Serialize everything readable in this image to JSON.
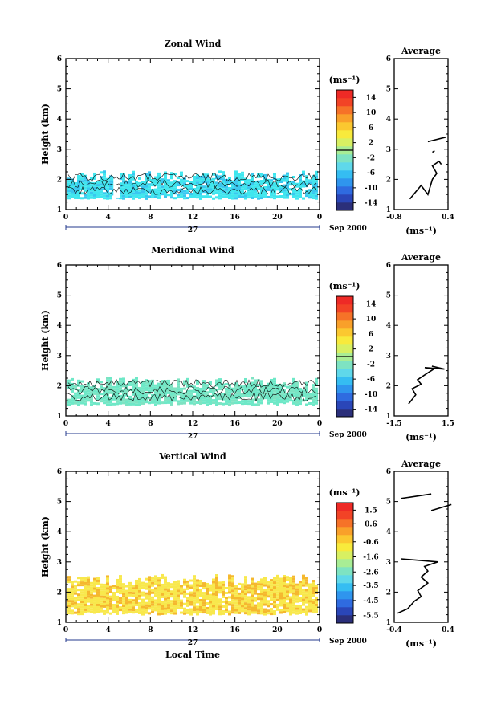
{
  "colors": {
    "zonal_scale": [
      "#2b2f7a",
      "#2a46b8",
      "#2f6be0",
      "#2f95ee",
      "#35bdf2",
      "#5fd8ea",
      "#7ee3c2",
      "#a8ed95",
      "#d8f062",
      "#f8ea3c",
      "#fbc830",
      "#f9a02a",
      "#f67228",
      "#f24326",
      "#ee2a26"
    ],
    "vertical_scale": [
      "#2b2f7a",
      "#2a46b8",
      "#2f6be0",
      "#2f95ee",
      "#35bdf2",
      "#5fd8ea",
      "#7ee3c2",
      "#a8ed95",
      "#d8f062",
      "#f8ea3c",
      "#fbc830",
      "#f9a02a",
      "#f67228",
      "#f24326",
      "#ee2a26"
    ],
    "zonal_fill": "#3fe6ee",
    "meridional_fill": "#6ee8c7",
    "vertical_fill": "#f8e84c",
    "vertical_fill_dark": "#f5b82e"
  },
  "chart_data": [
    {
      "type": "heatmap",
      "title": "Zonal Wind",
      "ylabel": "Height (km)",
      "x_ticks": [
        "0",
        "4",
        "8",
        "12",
        "16",
        "20",
        "0"
      ],
      "y_ticks": [
        "1",
        "2",
        "3",
        "4",
        "5",
        "6"
      ],
      "xlim": [
        0,
        24
      ],
      "ylim": [
        1,
        6
      ],
      "date_axis": {
        "day": "27",
        "month_year": "Sep 2000"
      },
      "colorbar": {
        "unit": "(ms⁻¹)",
        "ticks": [
          "14",
          "10",
          "6",
          "2",
          "-2",
          "-6",
          "-10",
          "-14"
        ],
        "range": [
          -16,
          16
        ]
      },
      "data_band_km": [
        1.4,
        2.3
      ],
      "average_profile": {
        "title": "Average",
        "xlabel": "(ms⁻¹)",
        "x_ticks": [
          "-0.8",
          "0.4"
        ],
        "xlim": [
          -0.8,
          0.4
        ],
        "ylim": [
          1,
          6
        ],
        "y_ticks": [
          "1",
          "2",
          "3",
          "4",
          "5",
          "6"
        ],
        "segments": [
          [
            [
              -0.45,
              1.35
            ],
            [
              -0.2,
              1.8
            ],
            [
              -0.05,
              1.5
            ],
            [
              0.05,
              2.0
            ],
            [
              0.15,
              2.2
            ],
            [
              0.05,
              2.45
            ],
            [
              0.2,
              2.6
            ],
            [
              0.25,
              2.5
            ]
          ],
          [
            [
              0.05,
              2.9
            ],
            [
              0.1,
              2.95
            ]
          ],
          [
            [
              -0.05,
              3.25
            ],
            [
              0.35,
              3.4
            ]
          ]
        ]
      }
    },
    {
      "type": "heatmap",
      "title": "Meridional Wind",
      "ylabel": "Height (km)",
      "x_ticks": [
        "0",
        "4",
        "8",
        "12",
        "16",
        "20",
        "0"
      ],
      "y_ticks": [
        "1",
        "2",
        "3",
        "4",
        "5",
        "6"
      ],
      "xlim": [
        0,
        24
      ],
      "ylim": [
        1,
        6
      ],
      "date_axis": {
        "day": "27",
        "month_year": "Sep 2000"
      },
      "colorbar": {
        "unit": "(ms⁻¹)",
        "ticks": [
          "14",
          "10",
          "6",
          "2",
          "-2",
          "-6",
          "-10",
          "-14"
        ],
        "range": [
          -16,
          16
        ]
      },
      "data_band_km": [
        1.4,
        2.3
      ],
      "average_profile": {
        "title": "Average",
        "xlabel": "(ms⁻¹)",
        "x_ticks": [
          "-1.5",
          "1.5"
        ],
        "xlim": [
          -1.5,
          1.5
        ],
        "ylim": [
          1,
          6
        ],
        "y_ticks": [
          "1",
          "2",
          "3",
          "4",
          "5",
          "6"
        ],
        "segments": [
          [
            [
              -0.7,
              1.4
            ],
            [
              -0.3,
              1.7
            ],
            [
              -0.5,
              1.9
            ],
            [
              0.0,
              2.05
            ],
            [
              -0.2,
              2.2
            ],
            [
              0.3,
              2.4
            ],
            [
              0.7,
              2.55
            ],
            [
              0.2,
              2.6
            ],
            [
              1.3,
              2.55
            ],
            [
              0.6,
              2.65
            ]
          ]
        ]
      }
    },
    {
      "type": "heatmap",
      "title": "Vertical Wind",
      "ylabel": "Height (km)",
      "xlabel": "Local Time",
      "x_ticks": [
        "0",
        "4",
        "8",
        "12",
        "16",
        "20",
        "0"
      ],
      "y_ticks": [
        "1",
        "2",
        "3",
        "4",
        "5",
        "6"
      ],
      "xlim": [
        0,
        24
      ],
      "ylim": [
        1,
        6
      ],
      "date_axis": {
        "day": "27",
        "month_year": "Sep 2000"
      },
      "colorbar": {
        "unit": "(ms⁻¹)",
        "ticks": [
          "1.5",
          "0.6",
          "-0.6",
          "-1.6",
          "-2.6",
          "-3.5",
          "-4.5",
          "-5.5"
        ],
        "range": [
          -6.0,
          2.0
        ]
      },
      "data_band_km": [
        1.3,
        2.6
      ],
      "average_profile": {
        "title": "Average",
        "xlabel": "(ms⁻¹)",
        "x_ticks": [
          "-0.4",
          "0.4"
        ],
        "xlim": [
          -0.4,
          0.4
        ],
        "ylim": [
          1,
          6
        ],
        "y_ticks": [
          "1",
          "2",
          "3",
          "4",
          "5",
          "6"
        ],
        "segments": [
          [
            [
              -0.35,
              1.3
            ],
            [
              -0.2,
              1.45
            ],
            [
              -0.1,
              1.7
            ],
            [
              0.0,
              1.85
            ],
            [
              -0.05,
              2.05
            ],
            [
              0.1,
              2.3
            ],
            [
              0.0,
              2.5
            ],
            [
              0.1,
              2.7
            ],
            [
              0.05,
              2.85
            ],
            [
              0.25,
              3.0
            ],
            [
              -0.3,
              3.1
            ]
          ],
          [
            [
              0.15,
              4.7
            ],
            [
              0.45,
              4.9
            ]
          ],
          [
            [
              -0.3,
              5.1
            ],
            [
              0.15,
              5.25
            ]
          ]
        ]
      }
    }
  ]
}
